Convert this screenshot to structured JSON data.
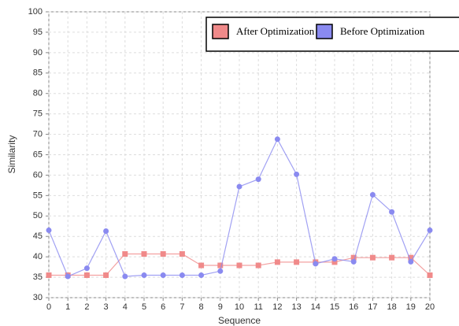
{
  "chart_data": {
    "type": "line",
    "x": [
      0,
      1,
      2,
      3,
      4,
      5,
      6,
      7,
      8,
      9,
      10,
      11,
      12,
      13,
      14,
      15,
      16,
      17,
      18,
      19,
      20
    ],
    "series": [
      {
        "name": "After Optimization",
        "color": "#f08a8a",
        "marker": "square",
        "values": [
          35.5,
          35.5,
          35.5,
          35.5,
          40.7,
          40.7,
          40.7,
          40.7,
          37.9,
          37.9,
          37.9,
          37.9,
          38.7,
          38.7,
          38.7,
          38.7,
          39.8,
          39.8,
          39.8,
          39.8,
          35.5
        ]
      },
      {
        "name": "Before Optimization",
        "color": "#8a8af0",
        "marker": "circle",
        "values": [
          46.5,
          35.2,
          37.2,
          46.3,
          35.2,
          35.5,
          35.5,
          35.5,
          35.5,
          36.5,
          57.2,
          59,
          68.8,
          60.2,
          38.3,
          39.5,
          38.8,
          55.2,
          51,
          38.8,
          46.5
        ]
      }
    ],
    "xlabel": "Sequence",
    "ylabel": "Similarity",
    "xlim": [
      0,
      20
    ],
    "xticks": [
      0,
      1,
      2,
      3,
      4,
      5,
      6,
      7,
      8,
      9,
      10,
      11,
      12,
      13,
      14,
      15,
      16,
      17,
      18,
      19,
      20
    ],
    "ylim": [
      30,
      100
    ],
    "yticks": [
      30,
      35,
      40,
      45,
      50,
      55,
      60,
      65,
      70,
      75,
      80,
      85,
      90,
      95,
      100
    ],
    "grid": true,
    "legend": "upper right"
  }
}
